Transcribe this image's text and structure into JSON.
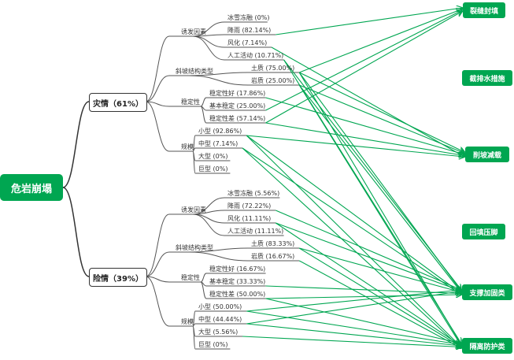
{
  "colors": {
    "accent": "#00a651",
    "line": "#555555"
  },
  "root": {
    "label": "危岩崩塌"
  },
  "categories": [
    {
      "id": "A",
      "label": "灾情（61%）",
      "groups": [
        {
          "label": "诱发因素",
          "leaves": [
            "冰雪冻融 (0%)",
            "降雨 (82.14%)",
            "风化 (7.14%)",
            "人工活动 (10.71%)"
          ]
        },
        {
          "label": "斜坡结构类型",
          "leaves": [
            "土质 (75.00%)",
            "岩质 (25.00%)"
          ]
        },
        {
          "label": "稳定性",
          "leaves": [
            "稳定性好 (17.86%)",
            "基本稳定 (25.00%)",
            "稳定性差 (57.14%)"
          ]
        },
        {
          "label": "规模",
          "leaves": [
            "小型 (92.86%)",
            "中型 (7.14%)",
            "大型 (0%)",
            "巨型 (0%)"
          ]
        }
      ]
    },
    {
      "id": "B",
      "label": "险情（39%）",
      "groups": [
        {
          "label": "诱发因素",
          "leaves": [
            "冰雪冻融 (5.56%)",
            "降雨 (72.22%)",
            "风化 (11.11%)",
            "人工活动 (11.11%)"
          ]
        },
        {
          "label": "斜坡结构类型",
          "leaves": [
            "土质 (83.33%)",
            "岩质 (16.67%)"
          ]
        },
        {
          "label": "稳定性",
          "leaves": [
            "稳定性好 (16.67%)",
            "基本稳定 (33.33%)",
            "稳定性差 (50.00%)"
          ]
        },
        {
          "label": "规模",
          "leaves": [
            "小型 (50.00%)",
            "中型 (44.44%)",
            "大型 (5.56%)",
            "巨型 (0%)"
          ]
        }
      ]
    }
  ],
  "targets": [
    "裂缝封填",
    "截排水措施",
    "削坡减载",
    "回填压脚",
    "支撑加固类",
    "隔离防护类"
  ],
  "edges": [
    [
      "A",
      1,
      0
    ],
    [
      "A",
      4,
      0
    ],
    [
      "A",
      7,
      0
    ],
    [
      "A",
      8,
      0
    ],
    [
      "A",
      2,
      2
    ],
    [
      "A",
      4,
      2
    ],
    [
      "A",
      5,
      2
    ],
    [
      "A",
      6,
      2
    ],
    [
      "A",
      8,
      2
    ],
    [
      "A",
      9,
      2
    ],
    [
      "A",
      3,
      4
    ],
    [
      "A",
      4,
      4
    ],
    [
      "A",
      5,
      4
    ],
    [
      "A",
      9,
      4
    ],
    [
      "A",
      10,
      4
    ],
    [
      "A",
      3,
      5
    ],
    [
      "A",
      4,
      5
    ],
    [
      "A",
      5,
      5
    ],
    [
      "A",
      9,
      5
    ],
    [
      "A",
      10,
      5
    ],
    [
      "B",
      1,
      4
    ],
    [
      "B",
      2,
      4
    ],
    [
      "B",
      4,
      4
    ],
    [
      "B",
      7,
      4
    ],
    [
      "B",
      8,
      4
    ],
    [
      "B",
      9,
      4
    ],
    [
      "B",
      10,
      4
    ],
    [
      "B",
      2,
      5
    ],
    [
      "B",
      4,
      5
    ],
    [
      "B",
      5,
      5
    ],
    [
      "B",
      8,
      5
    ],
    [
      "B",
      9,
      5
    ],
    [
      "B",
      10,
      5
    ],
    [
      "B",
      11,
      5
    ]
  ]
}
